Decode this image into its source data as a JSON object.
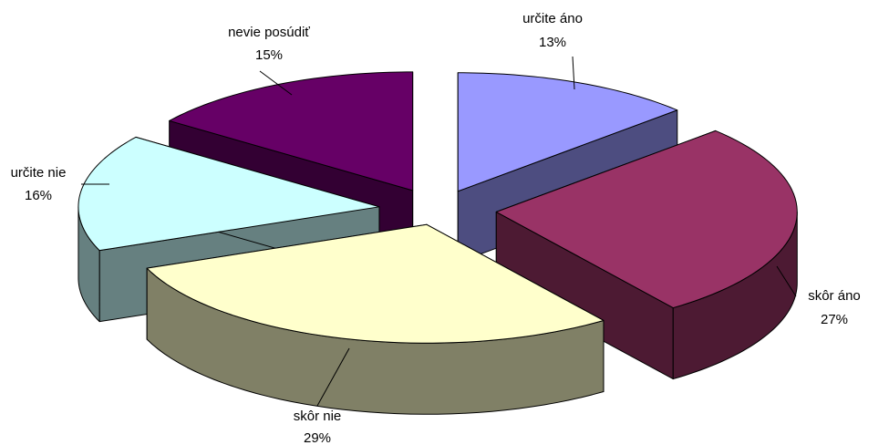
{
  "chart_data": {
    "type": "pie",
    "style": "3d-exploded",
    "slices": [
      {
        "label": "určite áno",
        "value": 13,
        "value_label": "13%",
        "color": "#9999FF",
        "side_color": "#4D4D80"
      },
      {
        "label": "skôr áno",
        "value": 27,
        "value_label": "27%",
        "color": "#993366",
        "side_color": "#4D1A33"
      },
      {
        "label": "skôr nie",
        "value": 29,
        "value_label": "29%",
        "color": "#FFFFCC",
        "side_color": "#808066"
      },
      {
        "label": "určite nie",
        "value": 16,
        "value_label": "16%",
        "color": "#CCFFFF",
        "side_color": "#668080"
      },
      {
        "label": "nevie posúdiť",
        "value": 15,
        "value_label": "15%",
        "color": "#660066",
        "side_color": "#330033"
      }
    ]
  }
}
